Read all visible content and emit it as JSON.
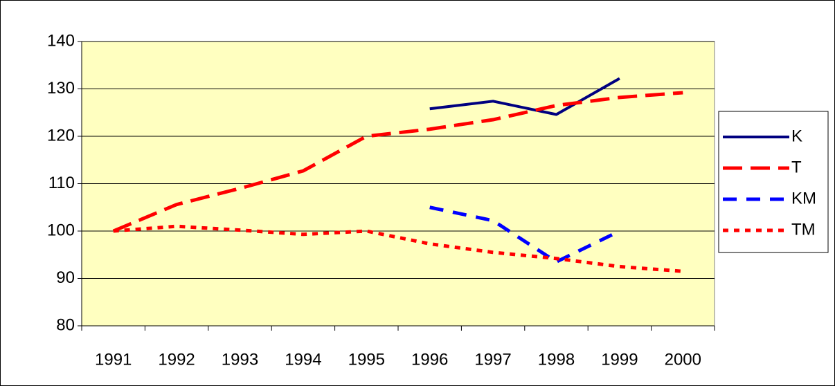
{
  "chart_data": {
    "type": "line",
    "categories": [
      "1991",
      "1992",
      "1993",
      "1994",
      "1995",
      "1996",
      "1997",
      "1998",
      "1999",
      "2000"
    ],
    "series": [
      {
        "name": "K",
        "color": "#000080",
        "dash": "solid",
        "values": [
          null,
          null,
          null,
          null,
          null,
          125.8,
          127.4,
          124.6,
          132.2,
          null
        ]
      },
      {
        "name": "T",
        "color": "#ff0000",
        "dash": "long-dash",
        "values": [
          100,
          105.6,
          109,
          112.7,
          120,
          121.5,
          123.5,
          126.5,
          128.2,
          129.2
        ]
      },
      {
        "name": "KM",
        "color": "#0000ff",
        "dash": "dash",
        "values": [
          null,
          null,
          null,
          null,
          null,
          105,
          102.2,
          93.5,
          100,
          null
        ]
      },
      {
        "name": "TM",
        "color": "#ff0000",
        "dash": "dot",
        "values": [
          100,
          101,
          100.2,
          99.3,
          100,
          97.3,
          95.5,
          94.2,
          92.5,
          91.5
        ]
      }
    ],
    "ylim": [
      80,
      140
    ],
    "yticks": [
      80,
      90,
      100,
      110,
      120,
      130,
      140
    ],
    "grid": true,
    "legend": "right",
    "plot_background": "#ffffc0"
  }
}
